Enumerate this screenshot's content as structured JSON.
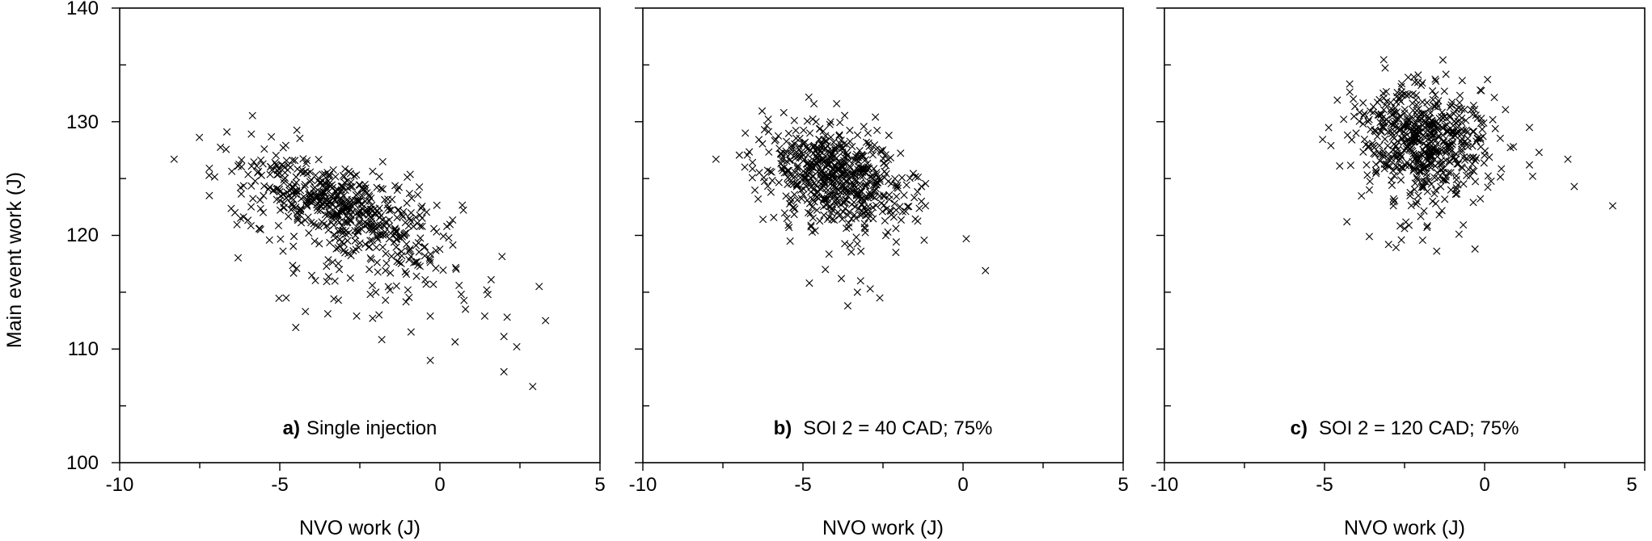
{
  "chart_data": [
    {
      "type": "scatter",
      "panel_label": "a)",
      "panel_title": "Single injection",
      "xlabel": "NVO work (J)",
      "ylabel": "Main event work (J)",
      "xlim": [
        -10,
        5
      ],
      "ylim": [
        100,
        140
      ],
      "x_ticks": [
        -10,
        -5,
        0,
        5
      ],
      "y_ticks": [
        100,
        110,
        120,
        130,
        140
      ],
      "marker": "x",
      "cluster": {
        "x_mean": -3.0,
        "x_sd": 1.6,
        "y_mean": 122.6,
        "y_sd": 1.8,
        "slope": -0.95,
        "count": 600,
        "seed": 11,
        "tail_fraction": 0.2,
        "tail_drop": 7
      },
      "points": [
        {
          "x": -8.3,
          "y": 126.7
        },
        {
          "x": -7.2,
          "y": 125.9
        },
        {
          "x": -7.2,
          "y": 123.5
        },
        {
          "x": -6.3,
          "y": 126.1
        },
        {
          "x": -6.4,
          "y": 122.0
        },
        {
          "x": -5.6,
          "y": 120.5
        },
        {
          "x": -4.8,
          "y": 114.5
        },
        {
          "x": -4.5,
          "y": 111.9
        },
        {
          "x": -4.2,
          "y": 113.3
        },
        {
          "x": -3.5,
          "y": 113.1
        },
        {
          "x": -2.6,
          "y": 112.9
        },
        {
          "x": -2.1,
          "y": 112.7
        },
        {
          "x": -1.9,
          "y": 113.0
        },
        {
          "x": -0.9,
          "y": 111.5
        },
        {
          "x": -0.3,
          "y": 112.9
        },
        {
          "x": -0.3,
          "y": 109.0
        },
        {
          "x": 0.8,
          "y": 113.5
        },
        {
          "x": 1.4,
          "y": 112.9
        },
        {
          "x": 1.6,
          "y": 116.1
        },
        {
          "x": 2.1,
          "y": 112.8
        },
        {
          "x": 2.0,
          "y": 111.1
        },
        {
          "x": 2.4,
          "y": 110.2
        },
        {
          "x": 2.0,
          "y": 108.0
        },
        {
          "x": 2.9,
          "y": 106.7
        },
        {
          "x": 3.1,
          "y": 115.5
        },
        {
          "x": 3.3,
          "y": 112.5
        },
        {
          "x": 1.5,
          "y": 114.8
        },
        {
          "x": 0.6,
          "y": 115.6
        },
        {
          "x": -1.0,
          "y": 115.2
        },
        {
          "x": -2.0,
          "y": 115.0
        }
      ]
    },
    {
      "type": "scatter",
      "panel_label": "b)",
      "panel_title": "SOI 2 = 40 CAD; 75%",
      "xlabel": "NVO work (J)",
      "xlim": [
        -10,
        5
      ],
      "ylim": [
        100,
        140
      ],
      "x_ticks": [
        -10,
        -5,
        0,
        5
      ],
      "marker": "x",
      "cluster": {
        "x_mean": -3.9,
        "x_sd": 1.05,
        "y_mean": 125.4,
        "y_sd": 2.0,
        "slope": -0.6,
        "count": 600,
        "seed": 23,
        "tail_fraction": 0.15,
        "tail_drop": 5
      },
      "points": [
        {
          "x": -6.8,
          "y": 129.0
        },
        {
          "x": -6.2,
          "y": 129.3
        },
        {
          "x": -5.6,
          "y": 130.8
        },
        {
          "x": -6.4,
          "y": 123.2
        },
        {
          "x": -6.0,
          "y": 123.8
        },
        {
          "x": -5.5,
          "y": 121.5
        },
        {
          "x": -5.4,
          "y": 119.5
        },
        {
          "x": -4.8,
          "y": 115.8
        },
        {
          "x": -4.3,
          "y": 117.0
        },
        {
          "x": -3.8,
          "y": 116.2
        },
        {
          "x": -3.6,
          "y": 113.8
        },
        {
          "x": -3.3,
          "y": 115.0
        },
        {
          "x": -2.9,
          "y": 115.3
        },
        {
          "x": -2.6,
          "y": 114.5
        },
        {
          "x": -2.1,
          "y": 118.5
        },
        {
          "x": -1.3,
          "y": 123.0
        },
        {
          "x": -1.3,
          "y": 124.3
        },
        {
          "x": 0.1,
          "y": 119.7
        },
        {
          "x": 0.7,
          "y": 116.9
        },
        {
          "x": -3.2,
          "y": 116.0
        }
      ]
    },
    {
      "type": "scatter",
      "panel_label": "c)",
      "panel_title": "SOI 2 = 120 CAD; 75%",
      "xlabel": "NVO work (J)",
      "xlim": [
        -10,
        5
      ],
      "ylim": [
        100,
        140
      ],
      "x_ticks": [
        -10,
        -5,
        0,
        5
      ],
      "marker": "x",
      "cluster": {
        "x_mean": -1.9,
        "x_sd": 1.05,
        "y_mean": 128.6,
        "y_sd": 2.3,
        "slope": -0.25,
        "count": 600,
        "seed": 37,
        "tail_fraction": 0.15,
        "tail_drop": 5
      },
      "points": [
        {
          "x": -4.8,
          "y": 127.9
        },
        {
          "x": -4.6,
          "y": 131.9
        },
        {
          "x": -4.1,
          "y": 132.0
        },
        {
          "x": -4.3,
          "y": 121.2
        },
        {
          "x": -3.6,
          "y": 119.9
        },
        {
          "x": -3.0,
          "y": 119.2
        },
        {
          "x": -2.6,
          "y": 119.6
        },
        {
          "x": -2.5,
          "y": 120.6
        },
        {
          "x": -1.8,
          "y": 120.7
        },
        {
          "x": -0.8,
          "y": 120.1
        },
        {
          "x": -0.3,
          "y": 118.8
        },
        {
          "x": 0.9,
          "y": 127.8
        },
        {
          "x": 1.4,
          "y": 126.2
        },
        {
          "x": 1.5,
          "y": 125.2
        },
        {
          "x": 1.7,
          "y": 127.3
        },
        {
          "x": 2.6,
          "y": 126.7
        },
        {
          "x": 2.8,
          "y": 124.3
        },
        {
          "x": 4.0,
          "y": 122.6
        },
        {
          "x": -3.6,
          "y": 124.0
        },
        {
          "x": 1.4,
          "y": 129.5
        }
      ]
    }
  ]
}
